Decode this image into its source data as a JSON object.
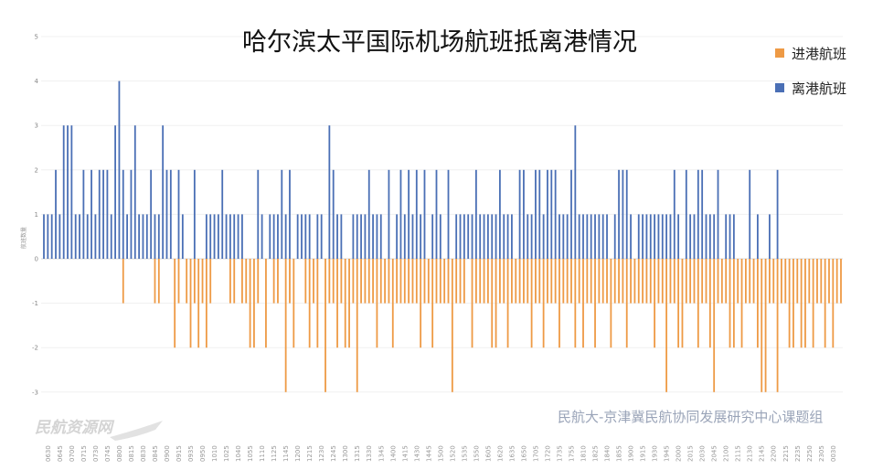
{
  "chart_data": {
    "type": "bar",
    "title": "哈尔滨太平国际机场航班抵离港情况",
    "ylabel": "航班数量",
    "xlabel": "",
    "ylim": [
      -3,
      5
    ],
    "yticks": [
      5,
      4,
      3,
      2,
      1,
      0,
      -1,
      -2,
      -3
    ],
    "grid": true,
    "legend_position": "top-right",
    "category_count": 202,
    "x_ticks": [
      {
        "index": 1,
        "label": "0630"
      },
      {
        "index": 4,
        "label": "0645"
      },
      {
        "index": 7,
        "label": "0700"
      },
      {
        "index": 10,
        "label": "0715"
      },
      {
        "index": 13,
        "label": "0730"
      },
      {
        "index": 16,
        "label": "0745"
      },
      {
        "index": 19,
        "label": "0800"
      },
      {
        "index": 22,
        "label": "0815"
      },
      {
        "index": 25,
        "label": "0830"
      },
      {
        "index": 28,
        "label": "0845"
      },
      {
        "index": 31,
        "label": "0900"
      },
      {
        "index": 34,
        "label": "0915"
      },
      {
        "index": 37,
        "label": "0935"
      },
      {
        "index": 40,
        "label": "0950"
      },
      {
        "index": 43,
        "label": "1010"
      },
      {
        "index": 46,
        "label": "1025"
      },
      {
        "index": 49,
        "label": "1040"
      },
      {
        "index": 52,
        "label": "1055"
      },
      {
        "index": 55,
        "label": "1110"
      },
      {
        "index": 58,
        "label": "1125"
      },
      {
        "index": 61,
        "label": "1145"
      },
      {
        "index": 64,
        "label": "1200"
      },
      {
        "index": 67,
        "label": "1215"
      },
      {
        "index": 70,
        "label": "1230"
      },
      {
        "index": 73,
        "label": "1245"
      },
      {
        "index": 76,
        "label": "1300"
      },
      {
        "index": 79,
        "label": "1315"
      },
      {
        "index": 82,
        "label": "1330"
      },
      {
        "index": 85,
        "label": "1345"
      },
      {
        "index": 88,
        "label": "1400"
      },
      {
        "index": 91,
        "label": "1415"
      },
      {
        "index": 94,
        "label": "1430"
      },
      {
        "index": 97,
        "label": "1445"
      },
      {
        "index": 100,
        "label": "1500"
      },
      {
        "index": 103,
        "label": "1520"
      },
      {
        "index": 106,
        "label": "1535"
      },
      {
        "index": 109,
        "label": "1550"
      },
      {
        "index": 112,
        "label": "1605"
      },
      {
        "index": 115,
        "label": "1620"
      },
      {
        "index": 118,
        "label": "1635"
      },
      {
        "index": 121,
        "label": "1650"
      },
      {
        "index": 124,
        "label": "1705"
      },
      {
        "index": 127,
        "label": "1720"
      },
      {
        "index": 130,
        "label": "1735"
      },
      {
        "index": 133,
        "label": "1755"
      },
      {
        "index": 136,
        "label": "1810"
      },
      {
        "index": 139,
        "label": "1825"
      },
      {
        "index": 142,
        "label": "1840"
      },
      {
        "index": 145,
        "label": "1855"
      },
      {
        "index": 148,
        "label": "1900"
      },
      {
        "index": 151,
        "label": "1915"
      },
      {
        "index": 154,
        "label": "1930"
      },
      {
        "index": 157,
        "label": "1945"
      },
      {
        "index": 160,
        "label": "2000"
      },
      {
        "index": 163,
        "label": "2015"
      },
      {
        "index": 166,
        "label": "2030"
      },
      {
        "index": 169,
        "label": "2045"
      },
      {
        "index": 172,
        "label": "2100"
      },
      {
        "index": 175,
        "label": "2115"
      },
      {
        "index": 178,
        "label": "2130"
      },
      {
        "index": 181,
        "label": "2145"
      },
      {
        "index": 184,
        "label": "2200"
      },
      {
        "index": 187,
        "label": "2215"
      },
      {
        "index": 190,
        "label": "2235"
      },
      {
        "index": 193,
        "label": "2250"
      },
      {
        "index": 196,
        "label": "2305"
      },
      {
        "index": 199,
        "label": "0030"
      }
    ],
    "series": [
      {
        "name": "进港航班",
        "color": "#EE9A45",
        "values": [
          0,
          0,
          0,
          0,
          0,
          0,
          0,
          0,
          0,
          0,
          0,
          0,
          0,
          0,
          0,
          0,
          0,
          0,
          0,
          0,
          -1,
          0,
          0,
          0,
          0,
          0,
          0,
          0,
          -1,
          -1,
          0,
          0,
          0,
          -2,
          -1,
          0,
          -1,
          -2,
          -1,
          -2,
          -1,
          -2,
          -1,
          0,
          0,
          0,
          0,
          -1,
          -1,
          0,
          -1,
          -1,
          -2,
          -2,
          -1,
          0,
          -2,
          0,
          -1,
          -1,
          0,
          -3,
          -1,
          -2,
          0,
          0,
          -1,
          -2,
          -1,
          -2,
          0,
          -3,
          -1,
          -1,
          -2,
          -1,
          -2,
          -2,
          -1,
          -3,
          -1,
          -1,
          -1,
          -1,
          -2,
          -1,
          -1,
          -1,
          -2,
          -1,
          -1,
          -1,
          -1,
          -1,
          -1,
          -2,
          -1,
          -1,
          -2,
          -1,
          -1,
          -1,
          -1,
          -3,
          -1,
          -1,
          -1,
          0,
          -2,
          -1,
          -1,
          -1,
          -1,
          -2,
          -2,
          -1,
          -1,
          -2,
          -1,
          -1,
          -1,
          -1,
          -1,
          -2,
          -1,
          -1,
          -2,
          -1,
          -1,
          -1,
          -2,
          -1,
          -1,
          -1,
          -2,
          -1,
          -2,
          -1,
          -1,
          -2,
          -1,
          -1,
          -1,
          -2,
          -1,
          -1,
          -1,
          -2,
          -1,
          -1,
          -1,
          -1,
          -1,
          -1,
          -2,
          -1,
          -1,
          -3,
          -1,
          -1,
          -2,
          -2,
          -1,
          -1,
          -1,
          -2,
          -1,
          -1,
          -2,
          -3,
          -1,
          -1,
          -1,
          -2,
          -2,
          -1,
          -2,
          -1,
          -1,
          -1,
          -2,
          -3,
          -3,
          -1,
          -1,
          -3,
          -1,
          -1,
          -2,
          -2,
          -1,
          -2,
          -2,
          -1,
          -2,
          -1,
          -1,
          -2,
          -1,
          -2,
          -1,
          -1
        ]
      },
      {
        "name": "离港航班",
        "color": "#4A6FB5",
        "values": [
          1,
          1,
          1,
          2,
          1,
          3,
          3,
          3,
          1,
          1,
          2,
          1,
          2,
          1,
          2,
          2,
          2,
          1,
          3,
          4,
          2,
          1,
          2,
          3,
          1,
          1,
          1,
          2,
          1,
          1,
          3,
          2,
          2,
          0,
          2,
          1,
          0,
          0,
          2,
          0,
          0,
          1,
          1,
          1,
          1,
          2,
          1,
          1,
          1,
          1,
          1,
          0,
          0,
          0,
          2,
          1,
          0,
          1,
          1,
          1,
          2,
          1,
          2,
          0,
          1,
          1,
          1,
          1,
          0,
          1,
          1,
          0,
          3,
          2,
          1,
          1,
          0,
          0,
          1,
          1,
          1,
          1,
          2,
          1,
          1,
          1,
          0,
          2,
          0,
          1,
          2,
          1,
          2,
          1,
          2,
          1,
          2,
          0,
          1,
          2,
          1,
          0,
          2,
          0,
          1,
          1,
          1,
          1,
          1,
          2,
          1,
          1,
          1,
          1,
          1,
          2,
          1,
          1,
          1,
          0,
          2,
          2,
          1,
          1,
          2,
          2,
          1,
          2,
          2,
          2,
          1,
          1,
          1,
          2,
          3,
          1,
          1,
          1,
          1,
          1,
          1,
          1,
          1,
          0,
          1,
          2,
          2,
          2,
          1,
          0,
          1,
          1,
          1,
          1,
          1,
          1,
          1,
          1,
          1,
          2,
          1,
          0,
          2,
          1,
          1,
          2,
          2,
          1,
          1,
          1,
          2,
          0,
          1,
          1,
          1,
          0,
          0,
          0,
          2,
          0,
          1,
          0,
          0,
          1,
          0,
          2,
          0,
          0,
          0,
          0,
          0,
          0,
          0,
          0,
          0,
          0,
          0,
          0,
          0,
          0,
          0,
          0
        ]
      }
    ]
  },
  "credit": "民航大-京津冀民航协同发展研究中心课题组",
  "watermark": "民航资源网"
}
